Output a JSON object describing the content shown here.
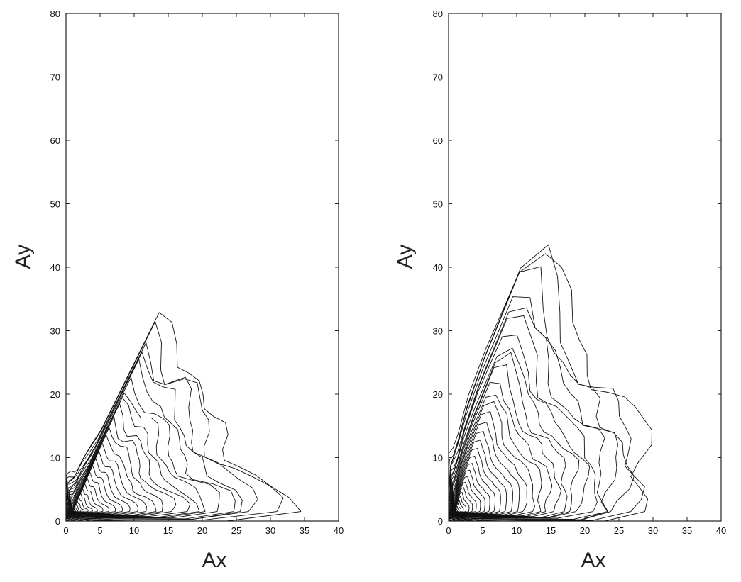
{
  "chart_data": [
    {
      "type": "contour",
      "xlabel": "Ax",
      "ylabel": "Ay",
      "xlim": [
        0,
        40
      ],
      "ylim": [
        0,
        80
      ],
      "xticks": [
        "0",
        "5",
        "10",
        "15",
        "20",
        "25",
        "30",
        "35",
        "40"
      ],
      "yticks": [
        "0",
        "10",
        "20",
        "30",
        "40",
        "50",
        "60",
        "70",
        "80"
      ],
      "grid": false,
      "peak": [
        1,
        1.5
      ],
      "core": {
        "x_extent": 6,
        "y_extent": 7
      },
      "n_levels": 28,
      "envelope": [
        [
          0,
          7
        ],
        [
          1.5,
          8
        ],
        [
          3,
          11
        ],
        [
          5,
          14
        ],
        [
          7,
          19
        ],
        [
          9,
          23
        ],
        [
          11,
          28
        ],
        [
          13,
          32
        ],
        [
          14,
          33
        ],
        [
          15,
          27
        ],
        [
          17,
          24
        ],
        [
          19,
          24.5
        ],
        [
          20,
          23
        ],
        [
          21,
          18
        ],
        [
          22,
          14
        ],
        [
          24,
          10
        ],
        [
          27,
          8
        ],
        [
          30,
          7
        ],
        [
          32,
          5
        ],
        [
          32.5,
          3
        ],
        [
          32,
          1
        ],
        [
          31,
          0
        ]
      ]
    },
    {
      "type": "contour",
      "xlabel": "Ax",
      "ylabel": "Ay",
      "xlim": [
        0,
        40
      ],
      "ylim": [
        0,
        80
      ],
      "xticks": [
        "0",
        "5",
        "10",
        "15",
        "20",
        "25",
        "30",
        "35",
        "40"
      ],
      "yticks": [
        "0",
        "10",
        "20",
        "30",
        "40",
        "50",
        "60",
        "70",
        "80"
      ],
      "grid": false,
      "peak": [
        1,
        1.5
      ],
      "core": {
        "x_extent": 4,
        "y_extent": 10
      },
      "n_levels": 32,
      "envelope": [
        [
          0,
          10
        ],
        [
          1,
          12
        ],
        [
          2,
          16
        ],
        [
          3,
          20
        ],
        [
          4,
          24
        ],
        [
          6,
          29
        ],
        [
          8,
          35
        ],
        [
          10,
          40
        ],
        [
          12,
          44
        ],
        [
          13.5,
          47
        ],
        [
          14.5,
          45
        ],
        [
          15,
          40
        ],
        [
          17,
          37
        ],
        [
          18,
          30
        ],
        [
          19,
          27
        ],
        [
          21,
          24
        ],
        [
          23,
          22
        ],
        [
          24,
          21
        ],
        [
          25,
          19
        ],
        [
          26,
          18
        ],
        [
          27,
          17
        ],
        [
          28,
          16
        ],
        [
          29,
          13
        ],
        [
          29,
          8
        ],
        [
          28.5,
          3
        ],
        [
          28,
          0
        ]
      ]
    }
  ]
}
